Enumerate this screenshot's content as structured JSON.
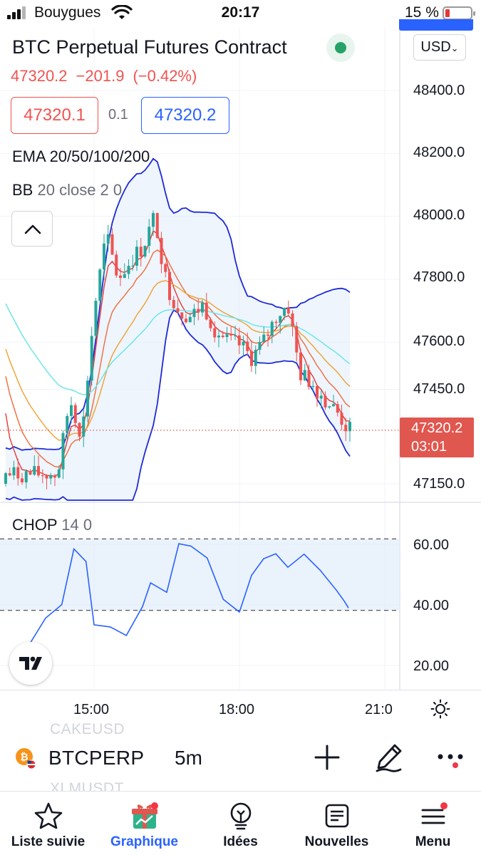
{
  "status_bar": {
    "carrier": "Bouygues",
    "time": "20:17",
    "battery_percent": "15 %",
    "battery_level": 0.15
  },
  "header": {
    "title": "BTC Perpetual Futures Contract",
    "currency": "USD",
    "last_price": "47320.2",
    "change": "−201.9",
    "change_percent": "(−0.42%)"
  },
  "trade": {
    "bid": "47320.1",
    "spread": "0.1",
    "ask": "47320.2"
  },
  "indicators": {
    "ema_label": "EMA 20/50/100/200",
    "bb_name": "BB",
    "bb_params": "20 close 2 0",
    "chop_name": "CHOP",
    "chop_params": "14 0"
  },
  "price_axis": {
    "ticks": [
      "48400.0",
      "48200.0",
      "48000.0",
      "47800.0",
      "47600.0",
      "47450.0",
      "47150.0"
    ],
    "current_price": "47320.2",
    "countdown": "03:01"
  },
  "chop_axis": {
    "ticks": [
      "60.00",
      "40.00",
      "20.00"
    ]
  },
  "time_axis": {
    "labels": [
      "15:00",
      "18:00",
      "21:0"
    ]
  },
  "watchlist_ghost": {
    "above": "CAKEUSD",
    "below": "XLMUSDT"
  },
  "symbol_bar": {
    "symbol": "BTCPERP",
    "interval": "5m"
  },
  "bottom_nav": {
    "items": [
      {
        "label": "Liste suivie",
        "active": false
      },
      {
        "label": "Graphique",
        "active": true
      },
      {
        "label": "Idées",
        "active": false
      },
      {
        "label": "Nouvelles",
        "active": false
      },
      {
        "label": "Menu",
        "active": false
      }
    ]
  },
  "colors": {
    "up": "#26a69a",
    "down": "#ef5350",
    "accent": "#2962ff",
    "bb_band": "#1e2ad6",
    "ema20": "#e53935",
    "ema50": "#f06a3a",
    "ema100": "#f0a030",
    "ema200": "#64e6e6"
  },
  "chart_data": [
    {
      "type": "candlestick",
      "title": "BTC Perpetual Futures Contract",
      "interval": "5m",
      "ylim": [
        47100,
        48500
      ],
      "x_ticks": [
        "15:00",
        "18:00",
        "21:0"
      ],
      "last_price": 47320.2,
      "ema_periods": [
        20,
        50,
        100,
        200
      ],
      "bollinger": {
        "length": 20,
        "source": "close",
        "stddev": 2
      },
      "close_path": [
        {
          "time": "14:15",
          "close": 47180
        },
        {
          "time": "14:30",
          "close": 47420
        },
        {
          "time": "14:45",
          "close": 47300
        },
        {
          "time": "15:00",
          "close": 47700
        },
        {
          "time": "15:15",
          "close": 47940
        },
        {
          "time": "15:30",
          "close": 47800
        },
        {
          "time": "15:45",
          "close": 47860
        },
        {
          "time": "16:00",
          "close": 47900
        },
        {
          "time": "16:15",
          "close": 48000
        },
        {
          "time": "16:30",
          "close": 47780
        },
        {
          "time": "16:45",
          "close": 47700
        },
        {
          "time": "17:00",
          "close": 47680
        },
        {
          "time": "17:15",
          "close": 47720
        },
        {
          "time": "17:30",
          "close": 47640
        },
        {
          "time": "17:45",
          "close": 47600
        },
        {
          "time": "18:00",
          "close": 47590
        },
        {
          "time": "18:15",
          "close": 47550
        },
        {
          "time": "18:30",
          "close": 47600
        },
        {
          "time": "18:45",
          "close": 47680
        },
        {
          "time": "19:00",
          "close": 47720
        },
        {
          "time": "19:15",
          "close": 47500
        },
        {
          "time": "19:30",
          "close": 47470
        },
        {
          "time": "19:45",
          "close": 47420
        },
        {
          "time": "20:00",
          "close": 47380
        },
        {
          "time": "20:15",
          "close": 47320
        }
      ]
    },
    {
      "type": "line",
      "title": "CHOP 14 0",
      "ylim": [
        15,
        65
      ],
      "bands": [
        38.2,
        61.8
      ],
      "ticks": [
        60,
        40,
        20
      ],
      "series": [
        {
          "values": [
            {
              "time": "13:40",
              "value": 27
            },
            {
              "time": "14:00",
              "value": 36
            },
            {
              "time": "14:20",
              "value": 40
            },
            {
              "time": "14:35",
              "value": 58
            },
            {
              "time": "14:50",
              "value": 54
            },
            {
              "time": "15:00",
              "value": 33
            },
            {
              "time": "15:20",
              "value": 33
            },
            {
              "time": "15:40",
              "value": 30
            },
            {
              "time": "16:00",
              "value": 40
            },
            {
              "time": "16:10",
              "value": 47
            },
            {
              "time": "16:30",
              "value": 44
            },
            {
              "time": "16:45",
              "value": 60
            },
            {
              "time": "17:00",
              "value": 59
            },
            {
              "time": "17:20",
              "value": 56
            },
            {
              "time": "17:40",
              "value": 42
            },
            {
              "time": "18:00",
              "value": 38
            },
            {
              "time": "18:15",
              "value": 50
            },
            {
              "time": "18:30",
              "value": 55
            },
            {
              "time": "18:45",
              "value": 57
            },
            {
              "time": "19:00",
              "value": 52
            },
            {
              "time": "19:20",
              "value": 57
            },
            {
              "time": "19:40",
              "value": 52
            },
            {
              "time": "20:00",
              "value": 45
            },
            {
              "time": "20:10",
              "value": 41
            },
            {
              "time": "20:15",
              "value": 39
            }
          ]
        }
      ]
    }
  ]
}
